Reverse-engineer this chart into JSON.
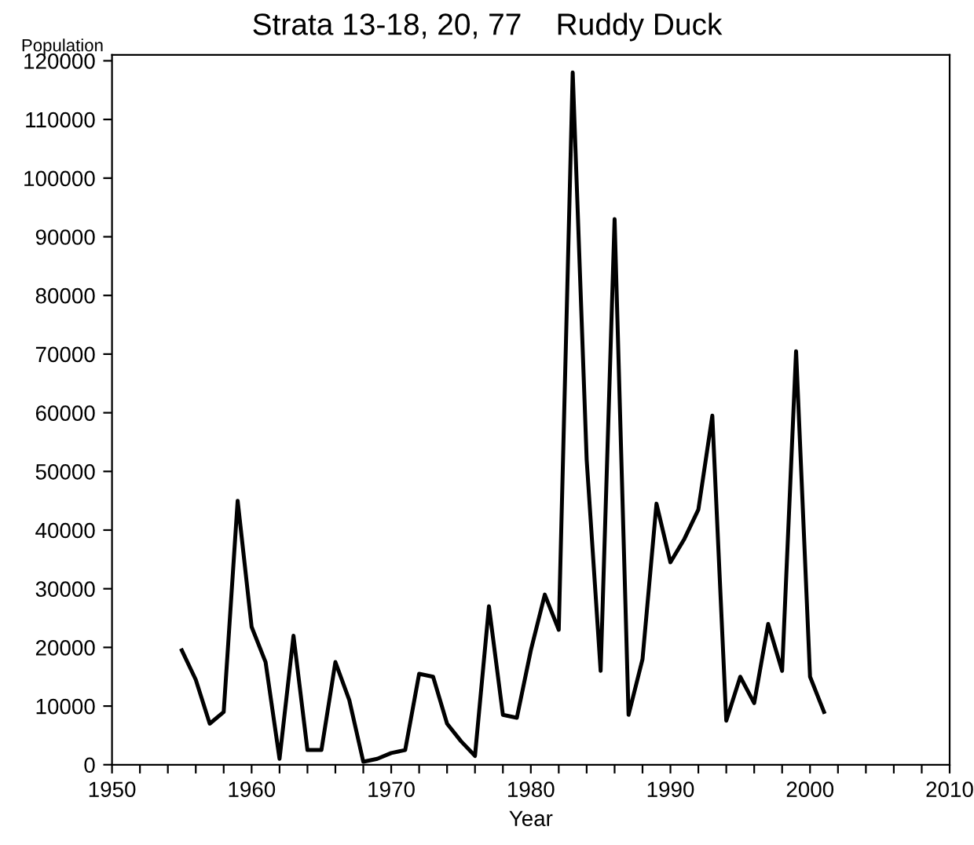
{
  "chart_data": {
    "type": "line",
    "title": "Strata 13-18, 20, 77    Ruddy Duck",
    "xlabel": "Year",
    "ylabel": "Population",
    "x": [
      1955,
      1956,
      1957,
      1958,
      1959,
      1960,
      1961,
      1962,
      1963,
      1964,
      1965,
      1966,
      1967,
      1968,
      1969,
      1970,
      1971,
      1972,
      1973,
      1974,
      1975,
      1976,
      1977,
      1978,
      1979,
      1980,
      1981,
      1982,
      1983,
      1984,
      1985,
      1986,
      1987,
      1988,
      1989,
      1990,
      1991,
      1992,
      1993,
      1994,
      1995,
      1996,
      1997,
      1998,
      1999,
      2000,
      2001
    ],
    "series": [
      {
        "color": "#000000",
        "values": [
          19500,
          14500,
          7000,
          9000,
          45000,
          23500,
          17500,
          1000,
          22000,
          2500,
          2500,
          17500,
          11000,
          500,
          1000,
          2000,
          2500,
          15500,
          15000,
          7000,
          4000,
          1500,
          27000,
          8500,
          8000,
          19500,
          29000,
          23000,
          118000,
          52000,
          16000,
          93000,
          8500,
          18000,
          44500,
          34500,
          38500,
          43500,
          59500,
          7500,
          15000,
          10500,
          24000,
          16000,
          70500,
          15000,
          9000
        ]
      }
    ],
    "xlim": [
      1950,
      2010
    ],
    "xticks": [
      1950,
      {
        "value": 1952,
        "label": null
      },
      {
        "value": 1954,
        "label": null
      },
      {
        "value": 1956,
        "label": null
      },
      {
        "value": 1958,
        "label": null
      },
      1960,
      {
        "value": 1962,
        "label": null
      },
      {
        "value": 1964,
        "label": null
      },
      {
        "value": 1966,
        "label": null
      },
      {
        "value": 1968,
        "label": null
      },
      1970,
      {
        "value": 1972,
        "label": null
      },
      {
        "value": 1974,
        "label": null
      },
      {
        "value": 1976,
        "label": null
      },
      {
        "value": 1978,
        "label": null
      },
      1980,
      {
        "value": 1982,
        "label": null
      },
      {
        "value": 1984,
        "label": null
      },
      {
        "value": 1986,
        "label": null
      },
      {
        "value": 1988,
        "label": null
      },
      1990,
      {
        "value": 1992,
        "label": null
      },
      {
        "value": 1994,
        "label": null
      },
      {
        "value": 1996,
        "label": null
      },
      {
        "value": 1998,
        "label": null
      },
      2000,
      {
        "value": 2002,
        "label": null
      },
      {
        "value": 2004,
        "label": null
      },
      {
        "value": 2006,
        "label": null
      },
      {
        "value": 2008,
        "label": null
      },
      2010
    ],
    "ylim": [
      0,
      121000
    ],
    "yticks": [
      0,
      10000,
      20000,
      30000,
      40000,
      50000,
      60000,
      70000,
      80000,
      90000,
      100000,
      110000,
      120000
    ],
    "grid": false,
    "legend": false,
    "marker": "none",
    "line_style": "solid"
  }
}
